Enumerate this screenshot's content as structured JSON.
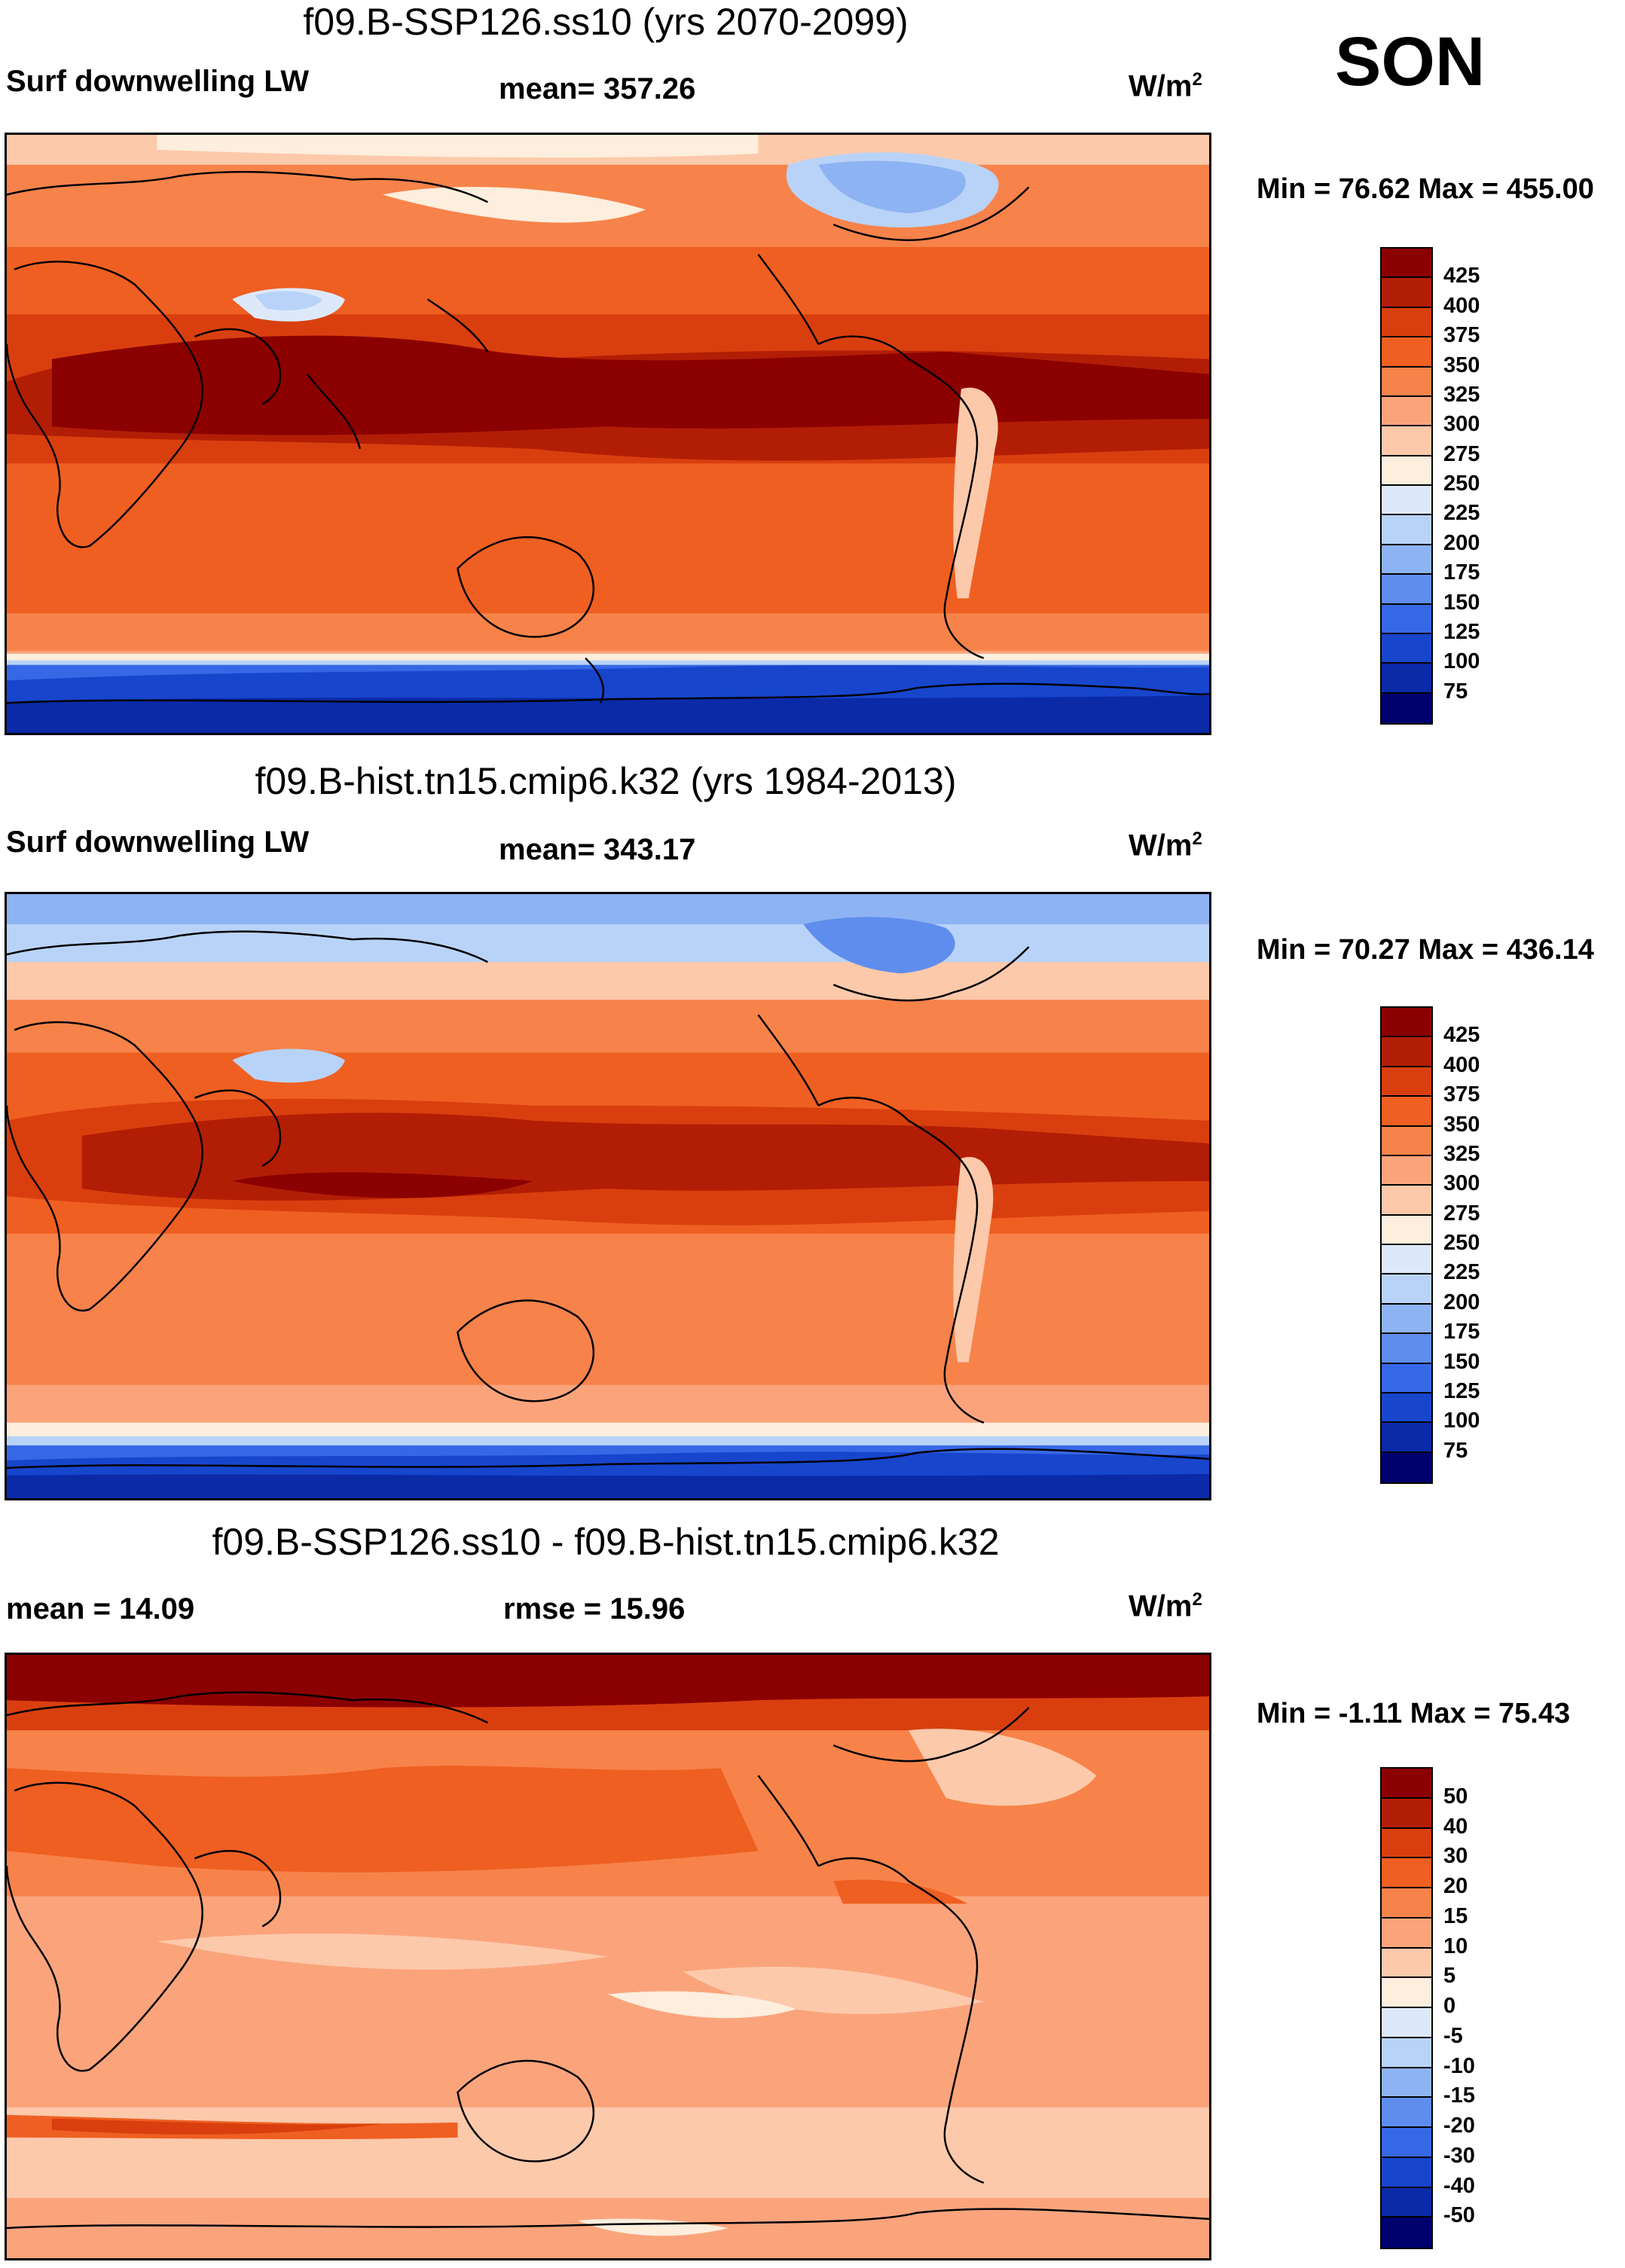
{
  "season": "SON",
  "units_main": "W/m",
  "units_sup": "2",
  "panels": [
    {
      "title": "f09.B-SSP126.ss10 (yrs 2070-2099)",
      "left_label": "Surf downwelling LW",
      "center_label": "mean= 357.26",
      "minmax": "Min =  76.62 Max = 455.00"
    },
    {
      "title": "f09.B-hist.tn15.cmip6.k32 (yrs 1984-2013)",
      "left_label": "Surf downwelling LW",
      "center_label": "mean= 343.17",
      "minmax": "Min =  70.27 Max = 436.14"
    },
    {
      "title": "f09.B-SSP126.ss10 - f09.B-hist.tn15.cmip6.k32",
      "left_label": "mean =  14.09",
      "center_label": "rmse =  15.96",
      "minmax": "Min =  -1.11 Max =  75.43"
    }
  ],
  "colorbar_abs": {
    "levels": [
      "425",
      "400",
      "375",
      "350",
      "325",
      "300",
      "275",
      "250",
      "225",
      "200",
      "175",
      "150",
      "125",
      "100",
      "75"
    ],
    "colors": [
      "#8b0000",
      "#b21e05",
      "#d93f0e",
      "#ef5f22",
      "#f7834a",
      "#fba47c",
      "#fdc9ab",
      "#fdeedd",
      "#dde9fb",
      "#b9d3f8",
      "#8eb3f2",
      "#5f8ded",
      "#3668e6",
      "#1745cc",
      "#0a2aa8",
      "#00006e"
    ]
  },
  "colorbar_diff": {
    "levels": [
      "50",
      "40",
      "30",
      "20",
      "15",
      "10",
      "5",
      "0",
      "-5",
      "-10",
      "-15",
      "-20",
      "-30",
      "-40",
      "-50"
    ],
    "colors": [
      "#8b0000",
      "#b21e05",
      "#d93f0e",
      "#ef5f22",
      "#f7834a",
      "#fba47c",
      "#fdc9ab",
      "#fdeedd",
      "#dde9fb",
      "#b9d3f8",
      "#8eb3f2",
      "#5f8ded",
      "#3668e6",
      "#1745cc",
      "#0a2aa8",
      "#00006e"
    ]
  }
}
